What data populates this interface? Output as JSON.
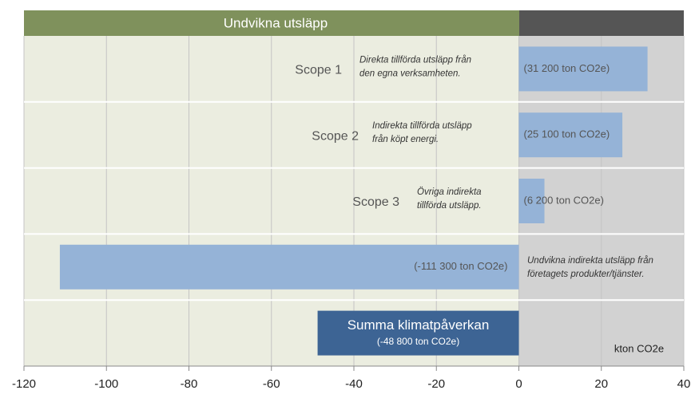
{
  "chart_data": {
    "type": "bar",
    "orientation": "horizontal",
    "header": "Undvikna utsläpp",
    "categories": [
      "Scope 1",
      "Scope 2",
      "Scope 3",
      null,
      "Summa klimatpåverkan"
    ],
    "annotations": [
      [
        "Direkta tillförda utsläpp från",
        "den egna verksamheten."
      ],
      [
        "Indirekta tillförda utsläpp",
        "från köpt energi."
      ],
      [
        "Övriga indirekta",
        "tillförda utsläpp."
      ],
      [
        "Undvikna indirekta utsläpp från",
        "företagets produkter/tjänster."
      ],
      null
    ],
    "values": [
      31.2,
      25.1,
      6.2,
      -111.3,
      -48.8
    ],
    "value_labels": [
      "(31 200 ton CO2e)",
      "(25 100 ton CO2e)",
      "(6 200 ton CO2e)",
      "(-111 300 ton CO2e)",
      "(-48 800 ton CO2e)"
    ],
    "colors": [
      "#95b3d7",
      "#95b3d7",
      "#95b3d7",
      "#95b3d7",
      "#3d6494"
    ],
    "x_label": "kton CO2e",
    "xlim": [
      -120,
      40
    ],
    "xticks": [
      -120,
      -100,
      -80,
      -60,
      -40,
      -20,
      0,
      20,
      40
    ],
    "grid": true
  }
}
